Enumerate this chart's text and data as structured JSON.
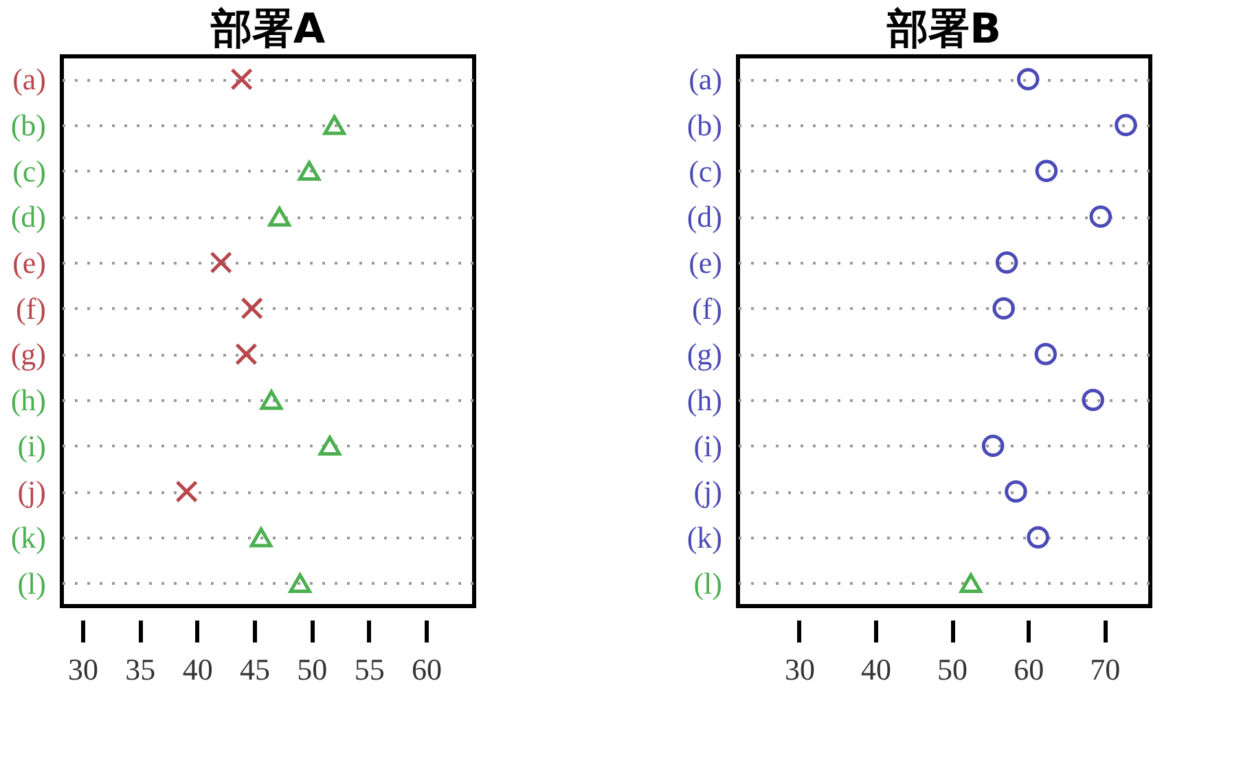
{
  "chart_data": [
    {
      "type": "scatter",
      "orientation": "horizontal",
      "title": "部署A",
      "categories": [
        "(a)",
        "(b)",
        "(c)",
        "(d)",
        "(e)",
        "(f)",
        "(g)",
        "(h)",
        "(i)",
        "(j)",
        "(k)",
        "(l)"
      ],
      "series": [
        {
          "color": "#b8474d",
          "marker": "cross",
          "values": [
            43.9,
            null,
            null,
            null,
            42.1,
            44.8,
            44.3,
            null,
            null,
            39.1,
            null,
            null
          ]
        },
        {
          "color": "#4caf50",
          "marker": "triangle",
          "values": [
            null,
            52.0,
            49.8,
            47.2,
            null,
            null,
            null,
            46.5,
            51.6,
            null,
            45.6,
            49.0
          ]
        }
      ],
      "xlim": [
        28.2,
        64.2
      ],
      "xticks": [
        30,
        35,
        40,
        45,
        50,
        55,
        60
      ],
      "grid": "y",
      "legend": false
    },
    {
      "type": "scatter",
      "orientation": "horizontal",
      "title": "部署B",
      "categories": [
        "(a)",
        "(b)",
        "(c)",
        "(d)",
        "(e)",
        "(f)",
        "(g)",
        "(h)",
        "(i)",
        "(j)",
        "(k)",
        "(l)"
      ],
      "series": [
        {
          "color": "#4b4bb8",
          "marker": "circle",
          "values": [
            60.0,
            72.8,
            62.4,
            69.5,
            57.2,
            56.8,
            62.3,
            68.5,
            55.4,
            58.4,
            61.3,
            null
          ]
        },
        {
          "color": "#4caf50",
          "marker": "triangle",
          "values": [
            null,
            null,
            null,
            null,
            null,
            null,
            null,
            null,
            null,
            null,
            null,
            52.5
          ]
        }
      ],
      "xlim": [
        22,
        76
      ],
      "xticks": [
        30,
        40,
        50,
        60,
        70
      ],
      "grid": "y",
      "legend": false
    }
  ]
}
